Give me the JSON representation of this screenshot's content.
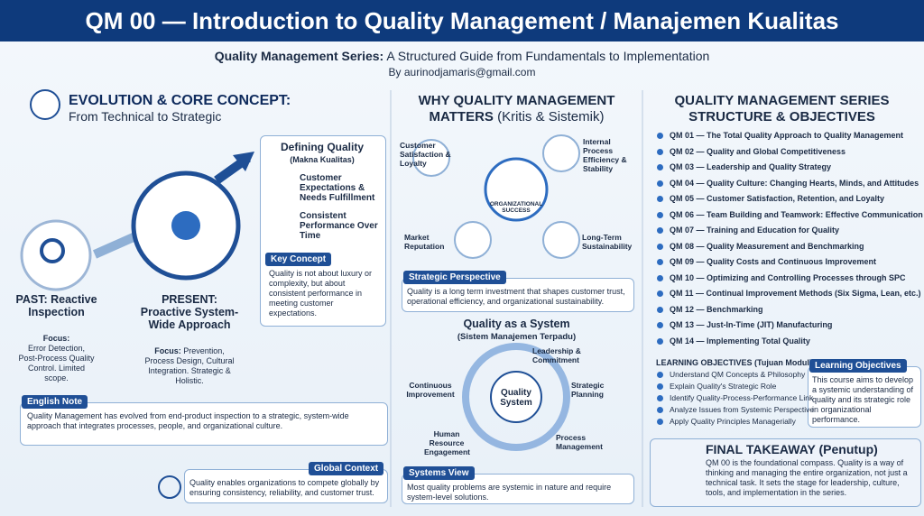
{
  "header": {
    "title": "QM 00 — Introduction to Quality Management / Manajemen Kualitas",
    "subtitle_bold": "Quality Management Series:",
    "subtitle_rest": "A Structured Guide from Fundamentals to Implementation",
    "author": "By aurinodjamaris@gmail.com"
  },
  "left": {
    "heading": "EVOLUTION & CORE CONCEPT:",
    "subheading": "From Technical to Strategic",
    "defining": {
      "title": "Defining Quality",
      "subtitle": "(Makna Kualitas)",
      "items": [
        "Customer Expectations & Needs Fulfillment",
        "Consistent Performance Over Time"
      ]
    },
    "key_concept": {
      "title": "Key Concept",
      "text": "Quality is not about luxury or complexity, but about consistent performance in meeting customer expectations."
    },
    "past": {
      "title": "PAST: Reactive Inspection",
      "focus_label": "Focus:",
      "focus_text": "Error Detection, Post-Process Quality Control. Limited scope."
    },
    "present": {
      "title": "PRESENT: Proactive System-Wide Approach",
      "focus_label": "Focus:",
      "focus_text": "Prevention, Process Design, Cultural Integration. Strategic & Holistic."
    },
    "english_note": {
      "title": "English Note",
      "text": "Quality Management has evolved from end-product inspection to a strategic, system-wide approach that integrates processes, people, and organizational culture."
    },
    "global_context": {
      "title": "Global Context",
      "text": "Quality enables organizations to compete globally by ensuring consistency, reliability, and customer trust."
    }
  },
  "middle": {
    "heading": "WHY QUALITY MANAGEMENT",
    "heading2": "MATTERS",
    "heading2_rest": "(Kritis & Sistemik)",
    "center": "ORGANIZATIONAL SUCCESS",
    "nodes": [
      "Customer Satisfaction & Loyalty",
      "Internal Process Efficiency & Stability",
      "Market Reputation",
      "Long-Term Sustainability"
    ],
    "strategic": {
      "title": "Strategic Perspective",
      "text": "Quality is a long term investment that shapes customer trust, operational efficiency, and organizational sustainability."
    },
    "system": {
      "title": "Quality as a System",
      "subtitle": "(Sistem Manajemen Terpadu)",
      "center": "Quality System",
      "nodes": [
        "Leadership & Commitment",
        "Strategic Planning",
        "Process Management",
        "Human Resource Engagement",
        "Continuous Improvement"
      ]
    },
    "systems_view": {
      "title": "Systems View",
      "text": "Most quality problems are systemic in nature and require system-level solutions."
    }
  },
  "right": {
    "heading": "QUALITY MANAGEMENT SERIES",
    "heading2": "STRUCTURE & OBJECTIVES",
    "series": [
      "QM 01 — The Total Quality Approach to Quality Management",
      "QM 02 — Quality and Global Competitiveness",
      "QM 03 — Leadership and Quality Strategy",
      "QM 04 — Quality Culture: Changing Hearts, Minds, and Attitudes",
      "QM 05 — Customer Satisfaction, Retention, and Loyalty",
      "QM 06 — Team Building and Teamwork: Effective Communication",
      "QM 07 — Training and Education for Quality",
      "QM 08 — Quality Measurement and Benchmarking",
      "QM 09 — Quality Costs and Continuous Improvement",
      "QM 10 — Optimizing and Controlling Processes through SPC",
      "QM 11 — Continual Improvement Methods (Six Sigma, Lean, etc.)",
      "QM 12 — Benchmarking",
      "QM 13 — Just-In-Time (JIT) Manufacturing",
      "QM 14 — Implementing Total Quality"
    ],
    "objectives_title": "LEARNING OBJECTIVES (Tujuan Modul)",
    "objectives": [
      "Understand QM Concepts & Philosophy",
      "Explain Quality's Strategic Role",
      "Identify Quality-Process-Performance Link",
      "Analyze Issues from Systemic Perspective",
      "Apply Quality Principles Managerially"
    ],
    "objectives_box": {
      "title": "Learning Objectives",
      "text": "This course aims to develop a systemic understanding of quality and its strategic role in organizational performance."
    },
    "final": {
      "title": "FINAL TAKEAWAY (Penutup)",
      "text": "QM 00 is the foundational compass. Quality is a way of thinking and managing the entire organization, not just a technical task. It sets the stage for leadership, culture, tools, and implementation in the series."
    }
  }
}
